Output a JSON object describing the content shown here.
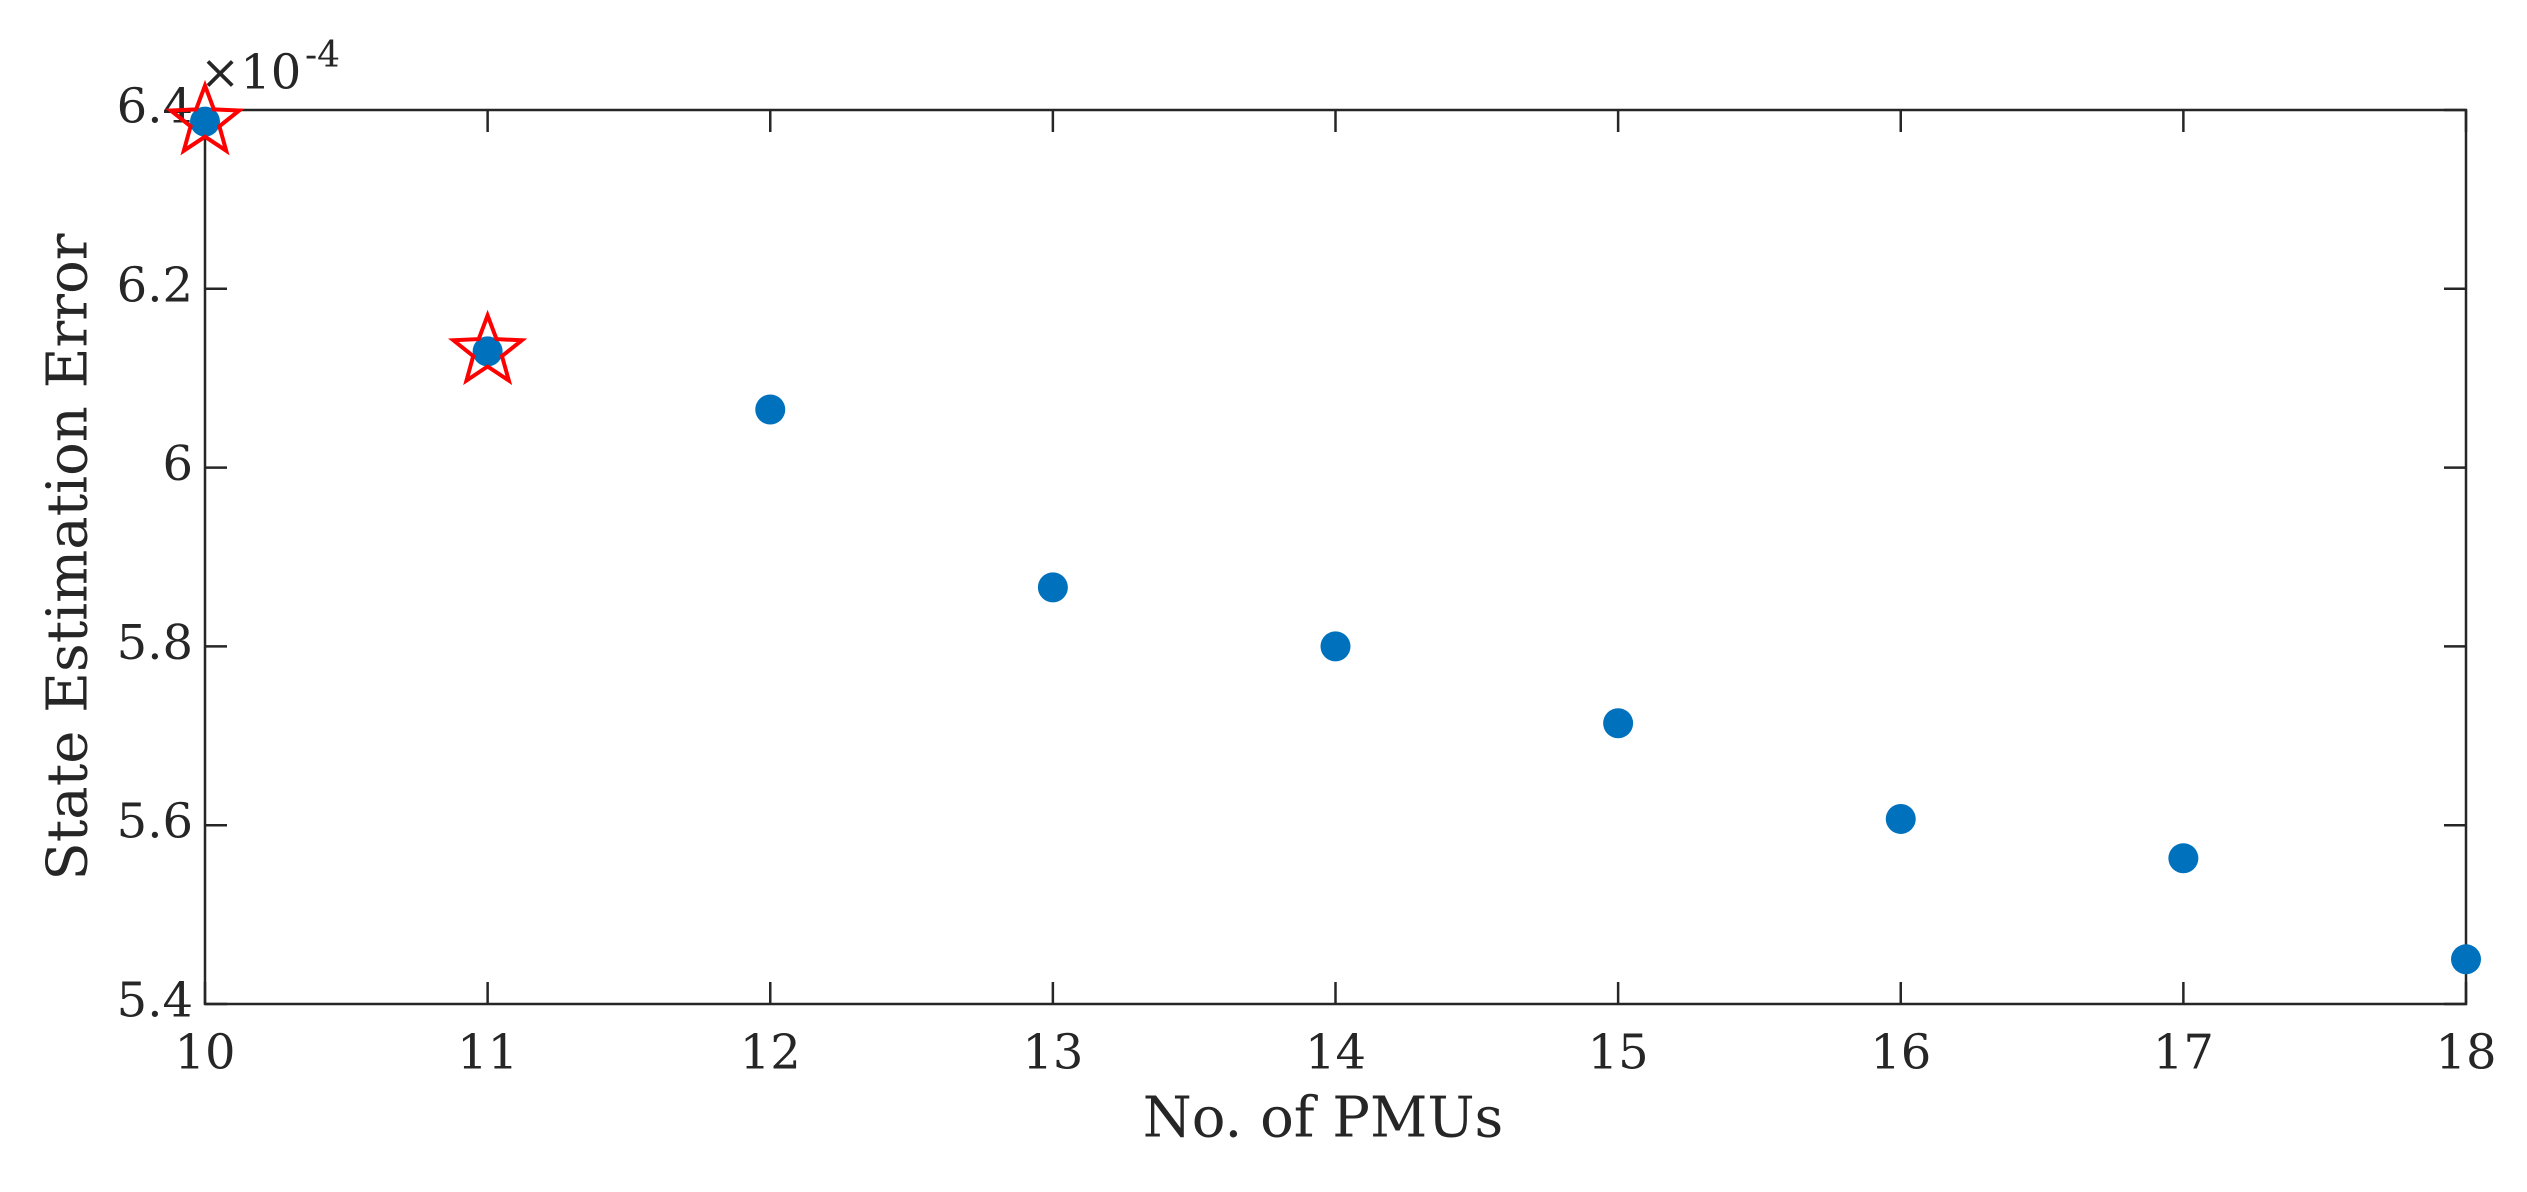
{
  "chart_data": {
    "type": "scatter",
    "xlabel": "No. of PMUs",
    "ylabel": "State Estimation Error",
    "y_exponent": {
      "base": "×10",
      "power": "-4"
    },
    "x": [
      10,
      11,
      12,
      13,
      14,
      15,
      16,
      17,
      18
    ],
    "series": [
      {
        "color": "#0072bd",
        "marker": "circle",
        "x": [
          10,
          11,
          12,
          13,
          14,
          15,
          16,
          17,
          18
        ],
        "values": [
          6.387,
          6.13,
          6.065,
          5.866,
          5.8,
          5.714,
          5.607,
          5.563,
          5.45
        ]
      },
      {
        "color": "#ff0000",
        "marker": "star",
        "x": [
          10,
          11
        ],
        "values": [
          6.387,
          6.13
        ]
      }
    ],
    "xlim": [
      10,
      18
    ],
    "xticks": [
      10,
      11,
      12,
      13,
      14,
      15,
      16,
      17,
      18
    ],
    "ylim": [
      5.4,
      6.4
    ],
    "yticks": [
      5.4,
      5.6,
      5.8,
      6,
      6.2,
      6.4
    ],
    "grid": false
  }
}
